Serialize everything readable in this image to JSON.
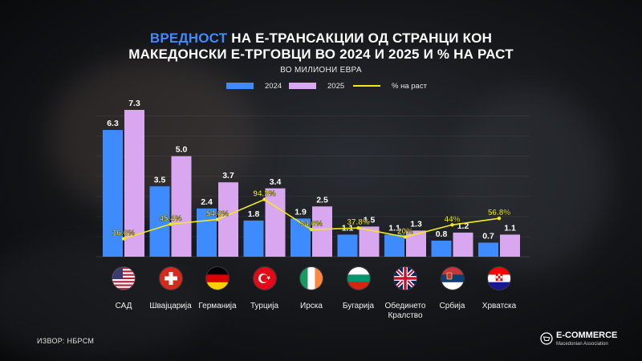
{
  "header": {
    "title_highlight": "ВРЕДНОСТ",
    "title_rest_line1": " НА Е-ТРАНСАКЦИИ ОД СТРАНЦИ КОН",
    "title_line2": "МАКЕДОНСКИ Е-ТРГОВЦИ ВО 2024 И 2025 И % НА РАСТ",
    "unit": "ВО МИЛИОНИ ЕВРА"
  },
  "legend": {
    "s2024": "2024",
    "s2025": "2025",
    "growth": "% на раст"
  },
  "colors": {
    "s2024": "#3d8bff",
    "s2025": "#d9a6f0",
    "growth": "#f2ea1d",
    "highlight": "#3d8bff"
  },
  "chart_data": {
    "type": "bar",
    "categories": [
      "САД",
      "Швајцарија",
      "Германија",
      "Турција",
      "Ирска",
      "Бугарија",
      "Обединето Кралство",
      "Србија",
      "Хрватска"
    ],
    "category_label_lines": [
      [
        "САД"
      ],
      [
        "Швајцарија"
      ],
      [
        "Германија"
      ],
      [
        "Турција"
      ],
      [
        "Ирска"
      ],
      [
        "Бугарија"
      ],
      [
        "Обединето",
        "Кралство"
      ],
      [
        "Србија"
      ],
      [
        "Хрватска"
      ]
    ],
    "series": [
      {
        "name": "2024",
        "values": [
          6.3,
          3.5,
          2.4,
          1.8,
          1.9,
          1.1,
          1.1,
          0.8,
          0.7
        ]
      },
      {
        "name": "2025",
        "values": [
          7.3,
          5.0,
          3.7,
          3.4,
          2.5,
          1.5,
          1.3,
          1.2,
          1.1
        ]
      }
    ],
    "growth": {
      "name": "% на раст",
      "values": [
        16.6,
        45.4,
        54.6,
        94.3,
        34.6,
        37.8,
        20,
        44,
        56.8
      ],
      "labels": [
        "16.6%",
        "45.4%",
        "54.6%",
        "94.3%",
        "34.6%",
        "37.8%",
        "20%",
        "44%",
        "56.8%"
      ]
    },
    "value_labels_2024": [
      "6.3",
      "3.5",
      "2.4",
      "1.8",
      "1.9",
      "1.1",
      "1.1",
      "0.8",
      "0.7"
    ],
    "value_labels_2025": [
      "7.3",
      "5.0",
      "3.7",
      "3.4",
      "2.5",
      "1.5",
      "1.3",
      "1.2",
      "1.1"
    ],
    "ylim": [
      0,
      7.3
    ],
    "growth_ylim": [
      0,
      100
    ],
    "grid": true,
    "legend_position": "top-center"
  },
  "flags": [
    "us-flag",
    "switzerland-flag",
    "germany-flag",
    "turkey-flag",
    "ireland-flag",
    "bulgaria-flag",
    "uk-flag",
    "serbia-flag",
    "croatia-flag"
  ],
  "footer": {
    "source": "ИЗВОР: НБРСМ",
    "logo_line1": "E-COMMERCE",
    "logo_line2": "Macedonian Association"
  }
}
